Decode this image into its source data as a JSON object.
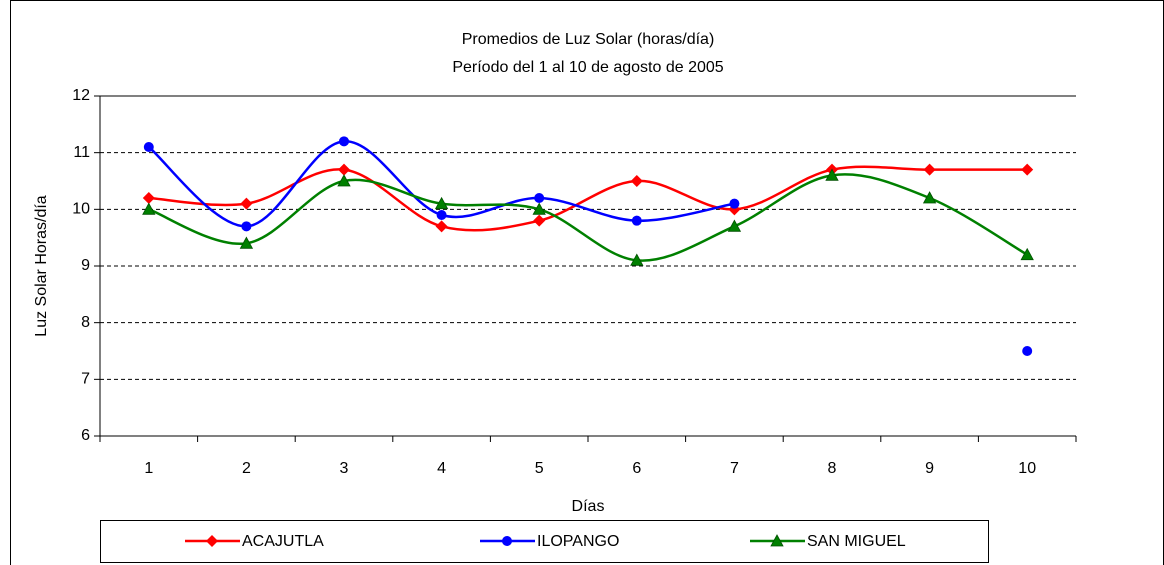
{
  "chart_data": {
    "type": "line",
    "title": "Promedios de Luz Solar (horas/día)",
    "subtitle": "Período del 1 al 10 de agosto de 2005",
    "x_label": "Días",
    "y_label": "Luz Solar Horas/día",
    "categories": [
      "1",
      "2",
      "3",
      "4",
      "5",
      "6",
      "7",
      "8",
      "9",
      "10"
    ],
    "series": [
      {
        "name": "ACAJUTLA",
        "color": "#ff0000",
        "marker": "diamond",
        "values": [
          10.2,
          10.1,
          10.7,
          9.7,
          9.8,
          10.5,
          10.0,
          10.7,
          10.7,
          10.7
        ]
      },
      {
        "name": "ILOPANGO",
        "color": "#0000ff",
        "marker": "circle",
        "values": [
          11.1,
          9.7,
          11.2,
          9.9,
          10.2,
          9.8,
          10.1,
          null,
          null,
          7.5
        ]
      },
      {
        "name": "SAN MIGUEL",
        "color": "#008000",
        "marker": "triangle",
        "values": [
          10.0,
          9.4,
          10.5,
          10.1,
          10.0,
          9.1,
          9.7,
          10.6,
          10.2,
          9.2
        ]
      }
    ],
    "ylim": [
      6,
      12
    ],
    "yticks": [
      6,
      7,
      8,
      9,
      10,
      11,
      12
    ],
    "grid": true,
    "smooth": true,
    "legend": "bottom"
  }
}
